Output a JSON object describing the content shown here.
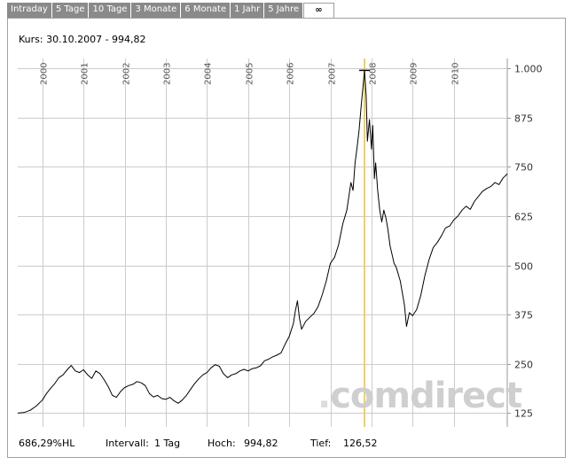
{
  "tabs": [
    {
      "label": "Intraday",
      "active": false
    },
    {
      "label": "5 Tage",
      "active": false
    },
    {
      "label": "10 Tage",
      "active": false
    },
    {
      "label": "3 Monate",
      "active": false
    },
    {
      "label": "6 Monate",
      "active": false
    },
    {
      "label": "1 Jahr",
      "active": false
    },
    {
      "label": "5 Jahre",
      "active": false
    },
    {
      "label": "∞",
      "active": true
    }
  ],
  "kurs_text": "Kurs: 30.10.2007 - 994,82",
  "watermark": {
    "dot": ".",
    "com": "com",
    "direct": "direct"
  },
  "footer": {
    "performance": "686,29%HL",
    "intervall_label": "Intervall:",
    "intervall_value": "1 Tag",
    "hoch_label": "Hoch:",
    "hoch_value": "994,82",
    "tief_label": "Tief:",
    "tief_value": "126,52"
  },
  "colors": {
    "line": "#000000",
    "grid": "#cccccc",
    "cursor": "#f0d060",
    "axis_text": "#555555"
  },
  "chart_data": {
    "type": "line",
    "title": "",
    "xlabel": "",
    "ylabel": "",
    "x_ticks": [
      "2000",
      "2001",
      "2002",
      "2003",
      "2004",
      "2005",
      "2006",
      "2007",
      "2008",
      "2009",
      "2010"
    ],
    "y_ticks": [
      "1.000",
      "875",
      "750",
      "625",
      "500",
      "375",
      "250",
      "125"
    ],
    "y_tick_values": [
      1000,
      875,
      750,
      625,
      500,
      375,
      250,
      125
    ],
    "ylim": [
      90,
      1025
    ],
    "xlim": [
      1999.4,
      2011.3
    ],
    "grid": true,
    "cursor": {
      "x": 2007.83,
      "y": 994.82
    },
    "series": [
      {
        "points": [
          [
            1999.4,
            125
          ],
          [
            1999.55,
            126.52
          ],
          [
            1999.7,
            132
          ],
          [
            1999.85,
            143
          ],
          [
            2000.0,
            158
          ],
          [
            2000.1,
            175
          ],
          [
            2000.2,
            188
          ],
          [
            2000.3,
            200
          ],
          [
            2000.4,
            215
          ],
          [
            2000.5,
            222
          ],
          [
            2000.6,
            235
          ],
          [
            2000.7,
            246
          ],
          [
            2000.8,
            232
          ],
          [
            2000.9,
            228
          ],
          [
            2001.0,
            235
          ],
          [
            2001.1,
            222
          ],
          [
            2001.2,
            213
          ],
          [
            2001.3,
            232
          ],
          [
            2001.4,
            225
          ],
          [
            2001.5,
            210
          ],
          [
            2001.6,
            192
          ],
          [
            2001.7,
            170
          ],
          [
            2001.8,
            165
          ],
          [
            2001.9,
            180
          ],
          [
            2002.0,
            190
          ],
          [
            2002.1,
            195
          ],
          [
            2002.2,
            198
          ],
          [
            2002.3,
            205
          ],
          [
            2002.4,
            202
          ],
          [
            2002.5,
            195
          ],
          [
            2002.6,
            175
          ],
          [
            2002.7,
            166
          ],
          [
            2002.8,
            170
          ],
          [
            2002.9,
            162
          ],
          [
            2003.0,
            160
          ],
          [
            2003.1,
            165
          ],
          [
            2003.2,
            156
          ],
          [
            2003.3,
            150
          ],
          [
            2003.4,
            158
          ],
          [
            2003.5,
            170
          ],
          [
            2003.6,
            185
          ],
          [
            2003.7,
            200
          ],
          [
            2003.8,
            212
          ],
          [
            2003.9,
            222
          ],
          [
            2004.0,
            228
          ],
          [
            2004.1,
            240
          ],
          [
            2004.2,
            248
          ],
          [
            2004.3,
            244
          ],
          [
            2004.4,
            225
          ],
          [
            2004.5,
            215
          ],
          [
            2004.6,
            222
          ],
          [
            2004.7,
            225
          ],
          [
            2004.8,
            232
          ],
          [
            2004.9,
            236
          ],
          [
            2005.0,
            232
          ],
          [
            2005.1,
            238
          ],
          [
            2005.2,
            240
          ],
          [
            2005.3,
            245
          ],
          [
            2005.4,
            258
          ],
          [
            2005.5,
            262
          ],
          [
            2005.6,
            268
          ],
          [
            2005.7,
            272
          ],
          [
            2005.8,
            278
          ],
          [
            2005.9,
            300
          ],
          [
            2006.0,
            320
          ],
          [
            2006.1,
            352
          ],
          [
            2006.15,
            385
          ],
          [
            2006.2,
            410
          ],
          [
            2006.25,
            365
          ],
          [
            2006.3,
            338
          ],
          [
            2006.4,
            358
          ],
          [
            2006.5,
            368
          ],
          [
            2006.6,
            378
          ],
          [
            2006.7,
            395
          ],
          [
            2006.8,
            425
          ],
          [
            2006.9,
            460
          ],
          [
            2007.0,
            505
          ],
          [
            2007.1,
            520
          ],
          [
            2007.2,
            552
          ],
          [
            2007.3,
            605
          ],
          [
            2007.4,
            640
          ],
          [
            2007.5,
            710
          ],
          [
            2007.55,
            690
          ],
          [
            2007.6,
            760
          ],
          [
            2007.65,
            800
          ],
          [
            2007.7,
            845
          ],
          [
            2007.75,
            905
          ],
          [
            2007.8,
            960
          ],
          [
            2007.83,
            994.82
          ],
          [
            2007.87,
            930
          ],
          [
            2007.9,
            815
          ],
          [
            2007.95,
            870
          ],
          [
            2008.0,
            795
          ],
          [
            2008.03,
            855
          ],
          [
            2008.07,
            720
          ],
          [
            2008.1,
            760
          ],
          [
            2008.15,
            690
          ],
          [
            2008.2,
            640
          ],
          [
            2008.25,
            610
          ],
          [
            2008.3,
            640
          ],
          [
            2008.35,
            620
          ],
          [
            2008.4,
            590
          ],
          [
            2008.45,
            550
          ],
          [
            2008.55,
            505
          ],
          [
            2008.6,
            495
          ],
          [
            2008.7,
            460
          ],
          [
            2008.8,
            400
          ],
          [
            2008.85,
            345
          ],
          [
            2008.92,
            380
          ],
          [
            2009.0,
            372
          ],
          [
            2009.1,
            388
          ],
          [
            2009.2,
            425
          ],
          [
            2009.3,
            475
          ],
          [
            2009.4,
            515
          ],
          [
            2009.5,
            545
          ],
          [
            2009.6,
            558
          ],
          [
            2009.7,
            575
          ],
          [
            2009.8,
            595
          ],
          [
            2009.9,
            600
          ],
          [
            2010.0,
            615
          ],
          [
            2010.1,
            625
          ],
          [
            2010.2,
            640
          ],
          [
            2010.3,
            650
          ],
          [
            2010.4,
            642
          ],
          [
            2010.5,
            662
          ],
          [
            2010.6,
            675
          ],
          [
            2010.7,
            688
          ],
          [
            2010.8,
            695
          ],
          [
            2010.9,
            700
          ],
          [
            2011.0,
            710
          ],
          [
            2011.1,
            705
          ],
          [
            2011.2,
            722
          ],
          [
            2011.3,
            732
          ]
        ]
      }
    ]
  }
}
